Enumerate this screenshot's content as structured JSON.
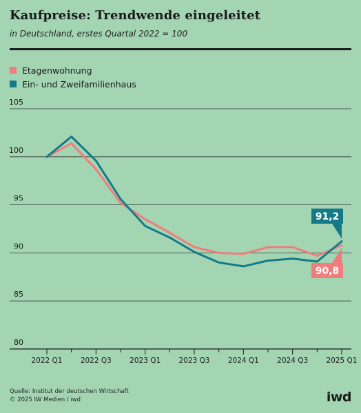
{
  "header": {
    "title": "Kaufpreise: Trendwende eingeleitet",
    "subtitle": "in Deutschland, erstes Quartal 2022 = 100"
  },
  "legend": [
    {
      "label": "Etagenwohnung",
      "color": "#f07c7c"
    },
    {
      "label": "Ein- und Zweifamilienhaus",
      "color": "#147a88"
    }
  ],
  "chart_data": {
    "type": "line",
    "x": [
      "2022 Q1",
      "2022 Q2",
      "2022 Q3",
      "2022 Q4",
      "2023 Q1",
      "2023 Q2",
      "2023 Q3",
      "2023 Q4",
      "2024 Q1",
      "2024 Q2",
      "2024 Q3",
      "2024 Q4",
      "2025 Q1"
    ],
    "x_tick_labels": [
      "2022 Q1",
      "2022 Q3",
      "2023 Q1",
      "2023 Q3",
      "2024 Q1",
      "2024 Q3",
      "2025 Q1"
    ],
    "series": [
      {
        "name": "Etagenwohnung",
        "color": "#f07c7c",
        "values": [
          100.0,
          101.4,
          98.7,
          95.2,
          93.5,
          92.1,
          90.6,
          90.0,
          89.9,
          90.6,
          90.6,
          89.7,
          90.8
        ]
      },
      {
        "name": "Ein- und Zweifamilienhaus",
        "color": "#147a88",
        "values": [
          100.0,
          102.1,
          99.6,
          95.6,
          92.8,
          91.6,
          90.1,
          89.0,
          88.6,
          89.2,
          89.4,
          89.1,
          91.2
        ]
      }
    ],
    "ylim": [
      80,
      105
    ],
    "y_ticks": [
      80,
      85,
      90,
      95,
      100,
      105
    ],
    "grid": "horizontal",
    "labels": [
      {
        "series": "Ein- und Zweifamilienhaus",
        "text": "91,2",
        "color": "#147a88"
      },
      {
        "series": "Etagenwohnung",
        "text": "90,8",
        "color": "#f07c7c"
      }
    ]
  },
  "footer": {
    "source": "Quelle: Institut der deutschen Wirtschaft",
    "copyright": "© 2025 IW Medien / iwd",
    "logo": "iwd"
  }
}
